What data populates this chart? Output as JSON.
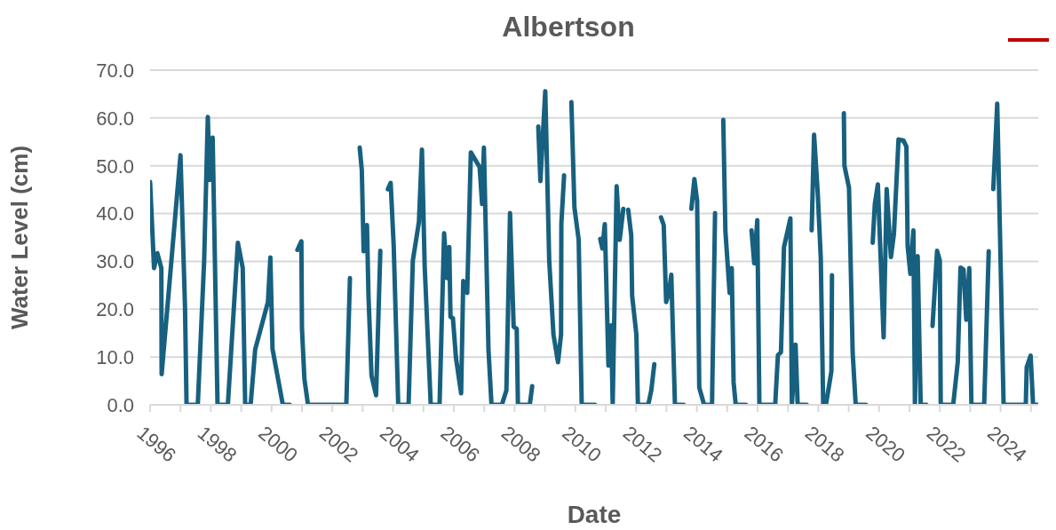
{
  "chart_data": {
    "type": "line",
    "title": "Albertson",
    "xlabel": "Date",
    "ylabel": "Water Level (cm)",
    "xlim": [
      1996,
      2025.24
    ],
    "xticks": [
      1996,
      {
        "value": 1997,
        "label": null
      },
      1998,
      {
        "value": 1999,
        "label": null
      },
      2000,
      {
        "value": 2001,
        "label": null
      },
      2002,
      {
        "value": 2003,
        "label": null
      },
      2004,
      {
        "value": 2005,
        "label": null
      },
      2006,
      {
        "value": 2007,
        "label": null
      },
      2008,
      {
        "value": 2009,
        "label": null
      },
      2010,
      {
        "value": 2011,
        "label": null
      },
      2012,
      {
        "value": 2013,
        "label": null
      },
      2014,
      {
        "value": 2015,
        "label": null
      },
      2016,
      {
        "value": 2017,
        "label": null
      },
      2018,
      {
        "value": 2019,
        "label": null
      },
      2020,
      {
        "value": 2021,
        "label": null
      },
      2022,
      {
        "value": 2023,
        "label": null
      },
      2024,
      {
        "value": 2025,
        "label": null
      }
    ],
    "ylim": [
      0,
      70
    ],
    "yticks": [
      {
        "value": 0,
        "label": "0.0"
      },
      {
        "value": 10,
        "label": "10.0"
      },
      {
        "value": 20,
        "label": "20.0"
      },
      {
        "value": 30,
        "label": "30.0"
      },
      {
        "value": 40,
        "label": "40.0"
      },
      {
        "value": 50,
        "label": "50.0"
      },
      {
        "value": 60,
        "label": "60.0"
      },
      {
        "value": 70,
        "label": "70.0"
      }
    ],
    "grid": "y",
    "marker": "none",
    "line_style": "solid",
    "series": [
      {
        "color": "#17607f",
        "x": [
          1996.0,
          1996.13,
          1996.24,
          1996.37,
          1996.38,
          1997.0,
          1997.15,
          1997.2,
          1997.57,
          1997.78,
          1997.9,
          1997.96,
          1998.06,
          1998.22,
          1998.56,
          1998.89,
          1999.05,
          1999.13,
          1999.31,
          1999.46,
          1999.88,
          1999.96,
          2000.03,
          2000.37,
          2000.6,
          2000.7,
          2000.85,
          2000.98,
          2001.0,
          2001.08,
          2001.2,
          2002.46,
          2002.58,
          2002.75,
          2002.9,
          2002.97,
          2003.03,
          2003.14,
          2003.19,
          2003.29,
          2003.44,
          2003.58,
          2003.7,
          2003.83,
          2003.92,
          2004.02,
          2004.17,
          2004.51,
          2004.65,
          2004.85,
          2004.95,
          2005.04,
          2005.24,
          2005.53,
          2005.68,
          2005.78,
          2005.85,
          2005.89,
          2005.97,
          2006.07,
          2006.24,
          2006.31,
          2006.44,
          2006.56,
          2006.85,
          2006.93,
          2006.99,
          2007.14,
          2007.24,
          2007.58,
          2007.73,
          2007.85,
          2007.97,
          2008.07,
          2008.11,
          2008.5,
          2008.58,
          2008.68,
          2008.78,
          2008.85,
          2009.01,
          2009.14,
          2009.28,
          2009.43,
          2009.53,
          2009.54,
          2009.63,
          2009.75,
          2009.87,
          2009.97,
          2010.11,
          2010.21,
          2010.65,
          2010.73,
          2010.82,
          2010.89,
          2010.97,
          2011.09,
          2011.18,
          2011.23,
          2011.36,
          2011.46,
          2011.58,
          2011.66,
          2011.74,
          2011.84,
          2011.87,
          2012.01,
          2012.06,
          2012.4,
          2012.5,
          2012.6,
          2012.71,
          2012.82,
          2012.91,
          2012.99,
          2013.08,
          2013.16,
          2013.28,
          2013.57,
          2013.7,
          2013.82,
          2013.92,
          2014.01,
          2014.08,
          2014.24,
          2014.5,
          2014.6,
          2014.73,
          2014.87,
          2014.94,
          2015.08,
          2015.15,
          2015.21,
          2015.28,
          2015.62,
          2015.71,
          2015.8,
          2015.89,
          2015.99,
          2016.06,
          2016.58,
          2016.67,
          2016.77,
          2016.87,
          2017.08,
          2017.13,
          2017.25,
          2017.32,
          2017.62,
          2017.7,
          2017.78,
          2017.86,
          2017.98,
          2018.08,
          2018.16,
          2018.25,
          2018.43,
          2018.45,
          2018.65,
          2018.84,
          2018.86,
          2019.01,
          2019.13,
          2019.23,
          2019.57,
          2019.68,
          2019.79,
          2019.86,
          2019.96,
          2020.15,
          2020.25,
          2020.39,
          2020.49,
          2020.64,
          2020.8,
          2020.9,
          2020.94,
          2021.03,
          2021.13,
          2021.18,
          2021.27,
          2021.37,
          2021.56,
          2021.66,
          2021.76,
          2021.91,
          2022.0,
          2022.03,
          2022.44,
          2022.59,
          2022.68,
          2022.78,
          2022.87,
          2022.97,
          2023.04,
          2023.46,
          2023.61,
          2023.68,
          2023.76,
          2023.89,
          2024.1,
          2024.83,
          2024.86,
          2024.99,
          2025.07,
          2025.24
        ],
        "values": [
          46.6,
          28.6,
          31.7,
          28.6,
          6.4,
          52.2,
          20.3,
          0,
          0,
          30.2,
          60.2,
          47,
          55.9,
          0,
          0,
          33.9,
          28.6,
          0,
          0,
          11.6,
          21.5,
          30.8,
          11.7,
          0,
          0,
          null,
          32.4,
          34.2,
          16,
          5.4,
          0,
          0,
          26.5,
          null,
          53.8,
          49.1,
          32.1,
          37.6,
          22.8,
          6.1,
          2,
          32.2,
          null,
          45.1,
          46.4,
          33.3,
          0,
          0,
          30.2,
          38.2,
          53.4,
          29,
          0,
          0,
          35.9,
          26.5,
          33,
          18.4,
          18.1,
          9.8,
          2.4,
          25.9,
          23.4,
          52.8,
          49.7,
          42,
          53.8,
          11.6,
          0,
          0,
          3,
          40.1,
          16.3,
          15.9,
          0,
          0,
          3.9,
          null,
          58.2,
          46.8,
          65.6,
          30.2,
          14.7,
          8.9,
          14.7,
          37.9,
          48,
          null,
          63.3,
          41.3,
          34.5,
          0,
          0,
          null,
          34.7,
          32.7,
          37.8,
          8.2,
          16.6,
          0,
          45.7,
          34.5,
          41,
          null,
          40.8,
          35.5,
          22.8,
          14.7,
          0,
          0,
          3,
          8.5,
          null,
          39.2,
          37.6,
          21.5,
          23.4,
          27.2,
          0,
          0,
          null,
          41,
          47.2,
          42.6,
          3.6,
          0,
          0,
          40.1,
          null,
          59.6,
          36.4,
          23.4,
          28.6,
          4.8,
          0,
          0,
          null,
          36.5,
          29.6,
          38.6,
          0,
          0,
          10.4,
          11,
          33,
          39,
          0,
          12.6,
          0,
          0,
          null,
          36.5,
          56.5,
          44.4,
          30.8,
          0,
          0,
          7,
          27.1,
          null,
          61,
          50,
          45.4,
          11,
          0,
          0,
          null,
          33.9,
          42,
          46.1,
          14.1,
          45.1,
          30.9,
          35.8,
          55.5,
          55.3,
          54,
          33.3,
          27.4,
          36.5,
          0,
          31.1,
          0,
          0,
          null,
          16.5,
          32.2,
          30.2,
          0,
          0,
          8.9,
          28.7,
          28.3,
          17.8,
          28.6,
          0,
          0,
          32.1,
          null,
          45.1,
          63,
          0,
          0,
          7.9,
          10.3,
          0,
          0
        ]
      }
    ]
  }
}
